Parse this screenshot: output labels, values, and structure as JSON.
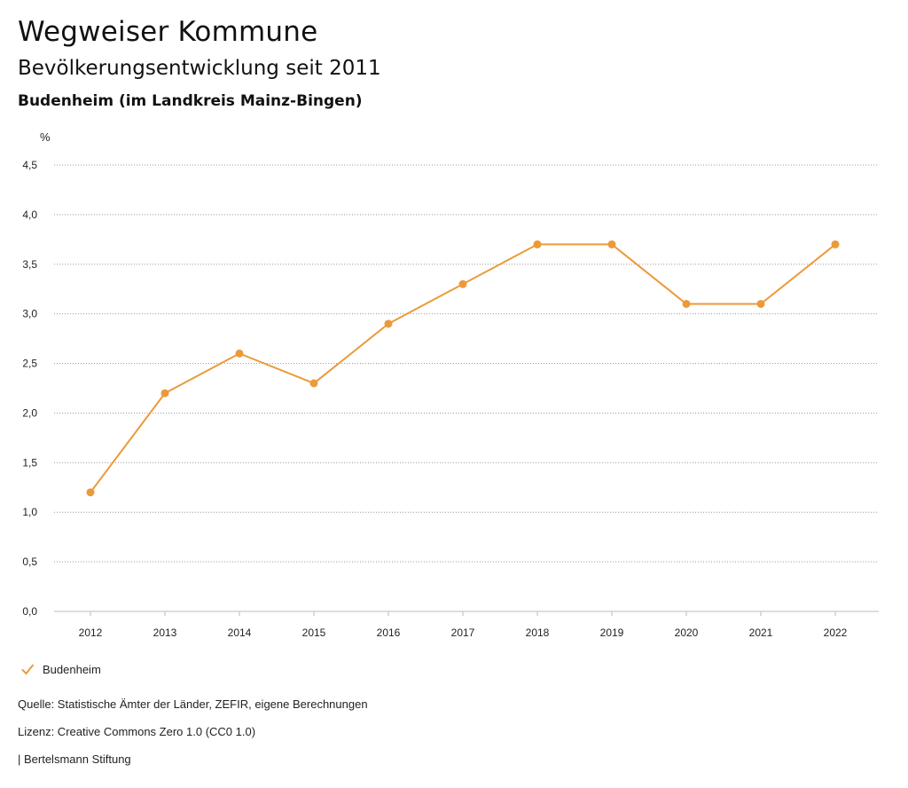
{
  "header": {
    "title": "Wegweiser Kommune",
    "subtitle": "Bevölkerungsentwicklung seit 2011",
    "region": "Budenheim (im Landkreis Mainz-Bingen)"
  },
  "chart_data": {
    "type": "line",
    "ylabel": "%",
    "ylim": [
      0,
      4.5
    ],
    "yticks": [
      "0,0",
      "0,5",
      "1,0",
      "1,5",
      "2,0",
      "2,5",
      "3,0",
      "3,5",
      "4,0",
      "4,5"
    ],
    "ytick_values": [
      0,
      0.5,
      1.0,
      1.5,
      2.0,
      2.5,
      3.0,
      3.5,
      4.0,
      4.5
    ],
    "categories": [
      "2012",
      "2013",
      "2014",
      "2015",
      "2016",
      "2017",
      "2018",
      "2019",
      "2020",
      "2021",
      "2022"
    ],
    "series": [
      {
        "name": "Budenheim",
        "color": "#eb9a3a",
        "values": [
          1.2,
          2.2,
          2.6,
          2.3,
          2.9,
          3.3,
          3.7,
          3.7,
          3.1,
          3.1,
          3.7
        ]
      }
    ],
    "grid": true,
    "legend": "bottom-left"
  },
  "legend": {
    "label": "Budenheim",
    "icon": "check-icon"
  },
  "footer": {
    "source": "Quelle: Statistische Ämter der Länder, ZEFIR, eigene Berechnungen",
    "license": "Lizenz: Creative Commons Zero 1.0 (CC0 1.0)",
    "publisher": "| Bertelsmann Stiftung"
  }
}
